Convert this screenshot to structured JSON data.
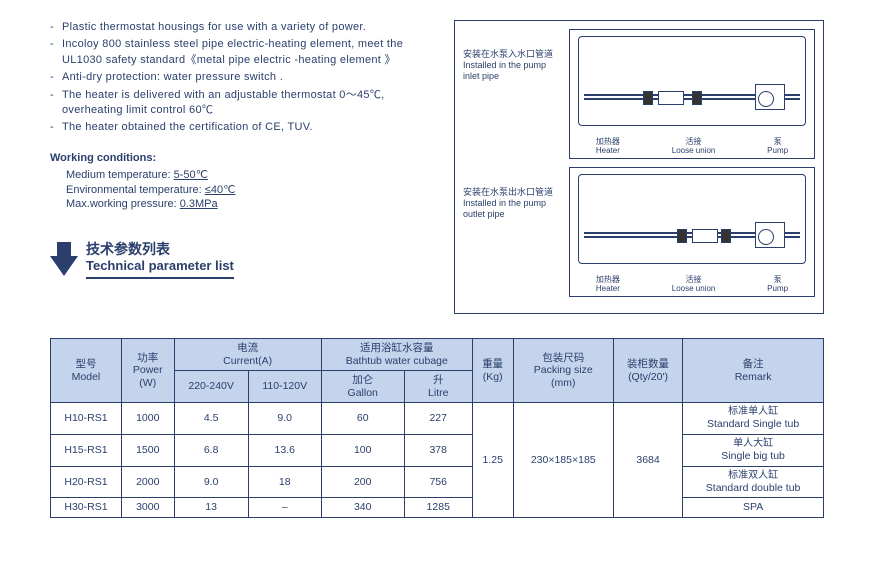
{
  "features": [
    "Plastic thermostat housings for use with a variety of power.",
    "Incoloy 800 stainless steel pipe electric-heating element, meet the UL1030 safety standard《metal pipe electric -heating element 》",
    "Anti-dry protection: water pressure switch .",
    "The heater is delivered with an adjustable thermostat 0～45℃, overheating limit control 60℃",
    "The heater obtained the certification of CE, TUV."
  ],
  "working": {
    "title": "Working conditions:",
    "lines": [
      {
        "label": "Medium temperature: ",
        "value": "5-50℃"
      },
      {
        "label": "Environmental temperature: ",
        "value": "≤40℃"
      },
      {
        "label": "Max.working pressure: ",
        "value": "0.3MPa"
      }
    ]
  },
  "section": {
    "cn": "技术参数列表",
    "en": "Technical parameter list"
  },
  "diagrams": {
    "inlet": {
      "cn": "安装在水泵入水口管道",
      "en": "Installed in the pump inlet pipe"
    },
    "outlet": {
      "cn": "安装在水泵出水口管道",
      "en": "Installed in the pump outlet pipe"
    },
    "callouts": {
      "heater": {
        "cn": "加热器",
        "en": "Heater"
      },
      "union": {
        "cn": "活接",
        "en": "Loose union"
      },
      "pump": {
        "cn": "泵",
        "en": "Pump"
      }
    }
  },
  "table": {
    "headers": {
      "model": {
        "cn": "型号",
        "en": "Model"
      },
      "power": {
        "cn": "功率",
        "en": "Power",
        "unit": "(W)"
      },
      "current": {
        "cn": "电流",
        "en": "Current(A)"
      },
      "current_240": "220-240V",
      "current_120": "110-120V",
      "cubage": {
        "cn": "适用浴缸水容量",
        "en": "Bathtub water cubage"
      },
      "gallon": {
        "cn": "加仑",
        "en": "Gallon"
      },
      "litre": {
        "cn": "升",
        "en": "Litre"
      },
      "weight": {
        "cn": "重量",
        "en": "(Kg)"
      },
      "packing": {
        "cn": "包装尺码",
        "en": "Packing size",
        "unit": "(mm)"
      },
      "qty": {
        "cn": "装柜数量",
        "en": "(Qty/20')"
      },
      "remark": {
        "cn": "备注",
        "en": "Remark"
      }
    },
    "rows": [
      {
        "model": "H10-RS1",
        "power": "1000",
        "c240": "4.5",
        "c120": "9.0",
        "gal": "60",
        "lit": "227",
        "remark_cn": "标准单人缸",
        "remark_en": "Standard Single tub"
      },
      {
        "model": "H15-RS1",
        "power": "1500",
        "c240": "6.8",
        "c120": "13.6",
        "gal": "100",
        "lit": "378",
        "remark_cn": "单人大缸",
        "remark_en": "Single big tub"
      },
      {
        "model": "H20-RS1",
        "power": "2000",
        "c240": "9.0",
        "c120": "18",
        "gal": "200",
        "lit": "756",
        "remark_cn": "标准双人缸",
        "remark_en": "Standard double tub"
      },
      {
        "model": "H30-RS1",
        "power": "3000",
        "c240": "13",
        "c120": "–",
        "gal": "340",
        "lit": "1285",
        "remark_cn": "",
        "remark_en": "SPA"
      }
    ],
    "shared": {
      "weight": "1.25",
      "packing": "230×185×185",
      "qty": "3684"
    }
  }
}
